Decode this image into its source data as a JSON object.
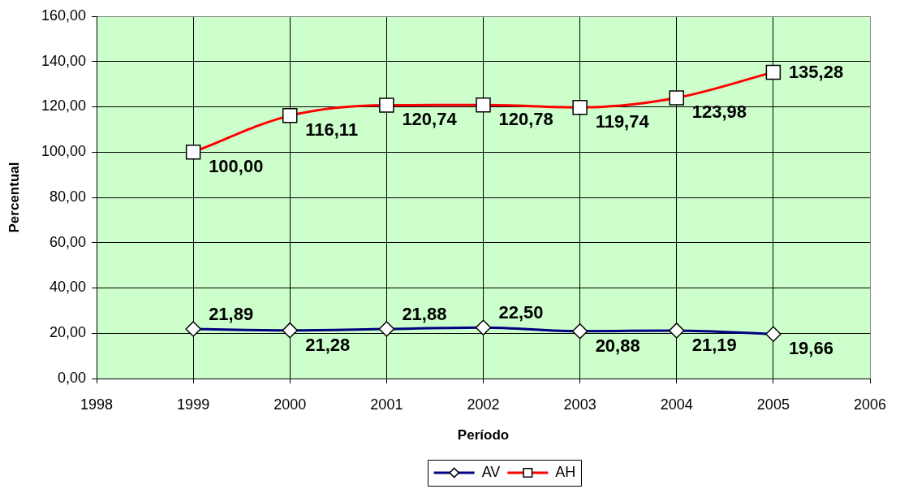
{
  "chart_data": {
    "type": "line",
    "xlabel": "Período",
    "ylabel": "Percentual",
    "x": [
      1999,
      2000,
      2001,
      2002,
      2003,
      2004,
      2005
    ],
    "xlim": [
      1998,
      2006
    ],
    "xticks": [
      1998,
      1999,
      2000,
      2001,
      2002,
      2003,
      2004,
      2005,
      2006
    ],
    "ylim": [
      0,
      160
    ],
    "yticks": [
      {
        "value": 0,
        "label": "0,00"
      },
      {
        "value": 20,
        "label": "20,00"
      },
      {
        "value": 40,
        "label": "40,00"
      },
      {
        "value": 60,
        "label": "60,00"
      },
      {
        "value": 80,
        "label": "80,00"
      },
      {
        "value": 100,
        "label": "100,00"
      },
      {
        "value": 120,
        "label": "120,00"
      },
      {
        "value": 140,
        "label": "140,00"
      },
      {
        "value": 160,
        "label": "160,00"
      }
    ],
    "grid": true,
    "legend": "bottom",
    "series": [
      {
        "name": "AV",
        "color": "#000080",
        "marker": "diamond",
        "values": [
          21.89,
          21.28,
          21.88,
          22.5,
          20.88,
          21.19,
          19.66
        ],
        "value_labels": [
          "21,89",
          "21,28",
          "21,88",
          "22,50",
          "20,88",
          "21,19",
          "19,66"
        ]
      },
      {
        "name": "AH",
        "color": "#ff0000",
        "marker": "square",
        "values": [
          100,
          116.11,
          120.74,
          120.78,
          119.74,
          123.98,
          135.28
        ],
        "value_labels": [
          "100,00",
          "116,11",
          "120,74",
          "120,78",
          "119,74",
          "123,98",
          "135,28"
        ]
      }
    ]
  }
}
